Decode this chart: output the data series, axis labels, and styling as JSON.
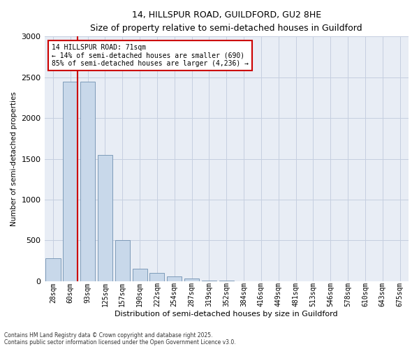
{
  "title_line1": "14, HILLSPUR ROAD, GUILDFORD, GU2 8HE",
  "title_line2": "Size of property relative to semi-detached houses in Guildford",
  "xlabel": "Distribution of semi-detached houses by size in Guildford",
  "ylabel": "Number of semi-detached properties",
  "categories": [
    "28sqm",
    "60sqm",
    "93sqm",
    "125sqm",
    "157sqm",
    "190sqm",
    "222sqm",
    "254sqm",
    "287sqm",
    "319sqm",
    "352sqm",
    "384sqm",
    "416sqm",
    "449sqm",
    "481sqm",
    "513sqm",
    "546sqm",
    "578sqm",
    "610sqm",
    "643sqm",
    "675sqm"
  ],
  "values": [
    280,
    2450,
    2450,
    1550,
    500,
    150,
    100,
    55,
    30,
    8,
    4,
    2,
    1,
    1,
    0,
    0,
    0,
    0,
    0,
    0,
    0
  ],
  "bar_color": "#c8d8ea",
  "bar_edge_color": "#7090b0",
  "highlight_label": "14 HILLSPUR ROAD: 71sqm",
  "pct_smaller": "14% of semi-detached houses are smaller (690)",
  "pct_larger": "85% of semi-detached houses are larger (4,236)",
  "annotation_box_color": "#ffffff",
  "annotation_box_edge": "#cc0000",
  "red_line_color": "#cc0000",
  "grid_color": "#c5cfe0",
  "bg_color": "#e8edf5",
  "ylim": [
    0,
    3000
  ],
  "yticks": [
    0,
    500,
    1000,
    1500,
    2000,
    2500,
    3000
  ],
  "footer_line1": "Contains HM Land Registry data © Crown copyright and database right 2025.",
  "footer_line2": "Contains public sector information licensed under the Open Government Licence v3.0."
}
